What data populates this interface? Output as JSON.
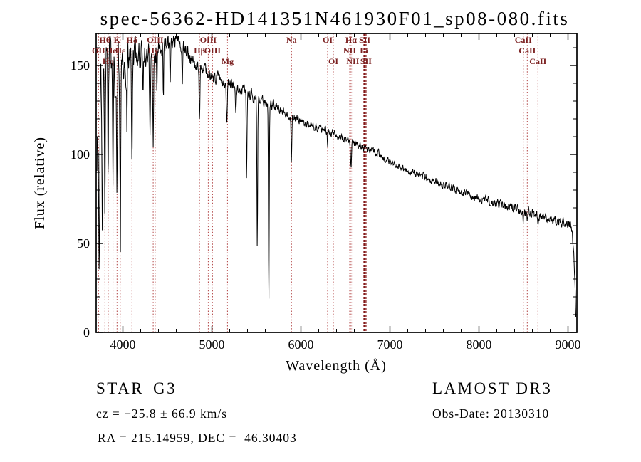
{
  "chart_data": {
    "type": "line",
    "title": "spec-56362-HD141351N461930F01_sp08-080.fits",
    "xlabel": "Wavelength (Å)",
    "ylabel": "Flux (relative)",
    "xlim": [
      3700,
      9100
    ],
    "ylim": [
      0,
      168
    ],
    "xticks": [
      4000,
      5000,
      6000,
      7000,
      8000,
      9000
    ],
    "yticks": [
      0,
      50,
      100,
      150
    ],
    "x_minor_step": 200,
    "y_minor_step": 10,
    "line_color": "#000000",
    "marker_line_color": "#b04040",
    "marker_line_strong_color": "#841a1a",
    "marker_label_color": "#7b2020",
    "continuum": [
      [
        3705,
        100
      ],
      [
        3720,
        120
      ],
      [
        3740,
        135
      ],
      [
        3760,
        142
      ],
      [
        3780,
        146
      ],
      [
        3820,
        150
      ],
      [
        3860,
        152
      ],
      [
        3900,
        153
      ],
      [
        3960,
        152
      ],
      [
        4000,
        153
      ],
      [
        4050,
        154
      ],
      [
        4150,
        156
      ],
      [
        4250,
        156
      ],
      [
        4350,
        158
      ],
      [
        4450,
        160
      ],
      [
        4550,
        162
      ],
      [
        4650,
        161
      ],
      [
        4750,
        156
      ],
      [
        4850,
        149
      ],
      [
        4950,
        146
      ],
      [
        5050,
        143
      ],
      [
        5150,
        141
      ],
      [
        5250,
        138
      ],
      [
        5350,
        136
      ],
      [
        5450,
        133
      ],
      [
        5550,
        131
      ],
      [
        5650,
        128
      ],
      [
        5750,
        126
      ],
      [
        5850,
        123
      ],
      [
        5950,
        120
      ],
      [
        6050,
        118
      ],
      [
        6150,
        116
      ],
      [
        6250,
        114
      ],
      [
        6350,
        112
      ],
      [
        6450,
        110
      ],
      [
        6550,
        107
      ],
      [
        6650,
        105
      ],
      [
        6750,
        103
      ],
      [
        6850,
        101
      ],
      [
        6950,
        97
      ],
      [
        7050,
        95
      ],
      [
        7150,
        92
      ],
      [
        7250,
        90
      ],
      [
        7350,
        88
      ],
      [
        7450,
        86
      ],
      [
        7550,
        84
      ],
      [
        7650,
        82
      ],
      [
        7750,
        80
      ],
      [
        7850,
        78
      ],
      [
        7950,
        76
      ],
      [
        8050,
        75
      ],
      [
        8150,
        73
      ],
      [
        8250,
        72
      ],
      [
        8350,
        70
      ],
      [
        8450,
        69
      ],
      [
        8550,
        68
      ],
      [
        8650,
        66
      ],
      [
        8750,
        65
      ],
      [
        8850,
        63
      ],
      [
        8950,
        62
      ],
      [
        9040,
        60
      ],
      [
        9070,
        40
      ],
      [
        9090,
        8
      ]
    ],
    "noise_amplitude": [
      [
        3700,
        18
      ],
      [
        4000,
        11
      ],
      [
        4400,
        7
      ],
      [
        4800,
        4.5
      ],
      [
        5300,
        3.5
      ],
      [
        6000,
        2.6
      ],
      [
        7000,
        2.2
      ],
      [
        8000,
        2.6
      ],
      [
        9100,
        3.2
      ]
    ],
    "absorption_lines": [
      [
        3735,
        90,
        14
      ],
      [
        3770,
        95,
        10
      ],
      [
        3798,
        85,
        10
      ],
      [
        3835,
        80,
        10
      ],
      [
        3889,
        75,
        10
      ],
      [
        3934,
        85,
        12
      ],
      [
        3970,
        80,
        12
      ],
      [
        4045,
        35,
        8
      ],
      [
        4102,
        65,
        12
      ],
      [
        4227,
        28,
        8
      ],
      [
        4305,
        45,
        14
      ],
      [
        4341,
        50,
        11
      ],
      [
        4383,
        26,
        8
      ],
      [
        4455,
        26,
        8
      ],
      [
        4531,
        18,
        8
      ],
      [
        4668,
        18,
        8
      ],
      [
        4861,
        30,
        12
      ],
      [
        5167,
        22,
        14
      ],
      [
        5270,
        16,
        10
      ],
      [
        5390,
        50,
        10
      ],
      [
        5510,
        85,
        10
      ],
      [
        5640,
        112,
        10
      ],
      [
        5894,
        25,
        10
      ],
      [
        6300,
        8,
        8
      ],
      [
        6563,
        14,
        12
      ],
      [
        8498,
        5,
        10
      ],
      [
        8542,
        6,
        10
      ],
      [
        8662,
        5,
        10
      ]
    ],
    "spectral_markers": [
      {
        "label": "OII",
        "wl": 3727,
        "row": 2
      },
      {
        "label": "Hθ",
        "wl": 3798,
        "row": 1
      },
      {
        "label": "Hη",
        "wl": 3835,
        "row": 3
      },
      {
        "label": "HeI",
        "wl": 3889,
        "row": 2
      },
      {
        "label": "K",
        "wl": 3934,
        "row": 1
      },
      {
        "label": "Hε",
        "wl": 3970,
        "row": 2
      },
      {
        "label": "Hδ",
        "wl": 4102,
        "row": 1
      },
      {
        "label": "Hγ",
        "wl": 4341,
        "row": 2
      },
      {
        "label": "OIII",
        "wl": 4363,
        "row": 1
      },
      {
        "label": "Hβ",
        "wl": 4861,
        "row": 2
      },
      {
        "label": "OIII",
        "wl": 4959,
        "row": 1
      },
      {
        "label": "OIII",
        "wl": 5007,
        "row": 2
      },
      {
        "label": "Mg",
        "wl": 5175,
        "row": 3
      },
      {
        "label": "Na",
        "wl": 5894,
        "row": 1
      },
      {
        "label": "OI",
        "wl": 6300,
        "row": 1
      },
      {
        "label": "OI",
        "wl": 6364,
        "row": 3
      },
      {
        "label": "NII",
        "wl": 6548,
        "row": 2
      },
      {
        "label": "Hα",
        "wl": 6563,
        "row": 1
      },
      {
        "label": "NII",
        "wl": 6583,
        "row": 3
      },
      {
        "label": "Li",
        "wl": 6708,
        "row": 2,
        "strong": true
      },
      {
        "label": "SII",
        "wl": 6717,
        "row": 1,
        "strong": true
      },
      {
        "label": "SII",
        "wl": 6731,
        "row": 3,
        "strong": true
      },
      {
        "label": "CaII",
        "wl": 8498,
        "row": 1
      },
      {
        "label": "CaII",
        "wl": 8542,
        "row": 2
      },
      {
        "label": "CaII",
        "wl": 8662,
        "row": 3
      }
    ]
  },
  "footer": {
    "class_label": "STAR",
    "subclass": "G3",
    "survey": "LAMOST DR3",
    "cz": "cz = −25.8 ± 66.9 km/s",
    "obs_date": "Obs-Date: 20130310",
    "ra_dec": "RA = 215.14959, DEC =  46.30403"
  }
}
